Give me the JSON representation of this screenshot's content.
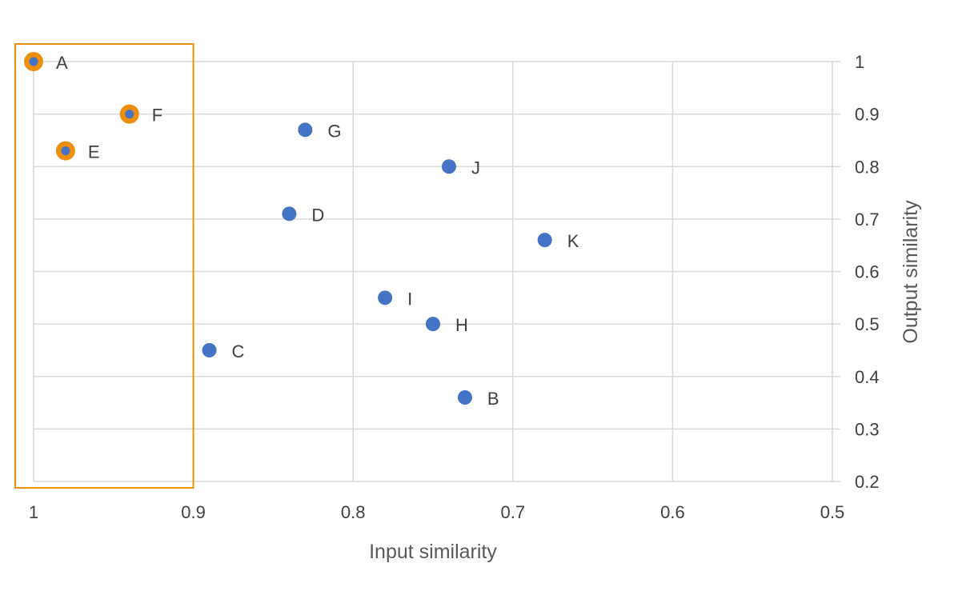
{
  "chart_data": {
    "type": "scatter",
    "xlabel": "Input similarity",
    "ylabel": "Output similarity",
    "xlim": [
      1,
      0.5
    ],
    "ylim": [
      0.2,
      1
    ],
    "x_reversed": true,
    "y_axis_side": "right",
    "grid": true,
    "x_ticks": [
      "1",
      "0.9",
      "0.8",
      "0.7",
      "0.6",
      "0.5"
    ],
    "y_ticks": [
      "1",
      "0.9",
      "0.8",
      "0.7",
      "0.6",
      "0.5",
      "0.4",
      "0.3",
      "0.2"
    ],
    "points": [
      {
        "label": "A",
        "x": 1.0,
        "y": 1.0,
        "highlighted": true
      },
      {
        "label": "F",
        "x": 0.94,
        "y": 0.9,
        "highlighted": true
      },
      {
        "label": "E",
        "x": 0.98,
        "y": 0.83,
        "highlighted": true
      },
      {
        "label": "G",
        "x": 0.83,
        "y": 0.87,
        "highlighted": false
      },
      {
        "label": "J",
        "x": 0.74,
        "y": 0.8,
        "highlighted": false
      },
      {
        "label": "D",
        "x": 0.84,
        "y": 0.71,
        "highlighted": false
      },
      {
        "label": "K",
        "x": 0.68,
        "y": 0.66,
        "highlighted": false
      },
      {
        "label": "I",
        "x": 0.78,
        "y": 0.55,
        "highlighted": false
      },
      {
        "label": "H",
        "x": 0.75,
        "y": 0.5,
        "highlighted": false
      },
      {
        "label": "C",
        "x": 0.89,
        "y": 0.45,
        "highlighted": false
      },
      {
        "label": "B",
        "x": 0.73,
        "y": 0.36,
        "highlighted": false
      }
    ],
    "highlight_region": {
      "x_from": 1.0,
      "x_to": 0.9
    },
    "colors": {
      "point": "#4472C4",
      "highlight": "#ED8F0C",
      "grid": "#D9D9D9",
      "text": "#404040"
    }
  }
}
